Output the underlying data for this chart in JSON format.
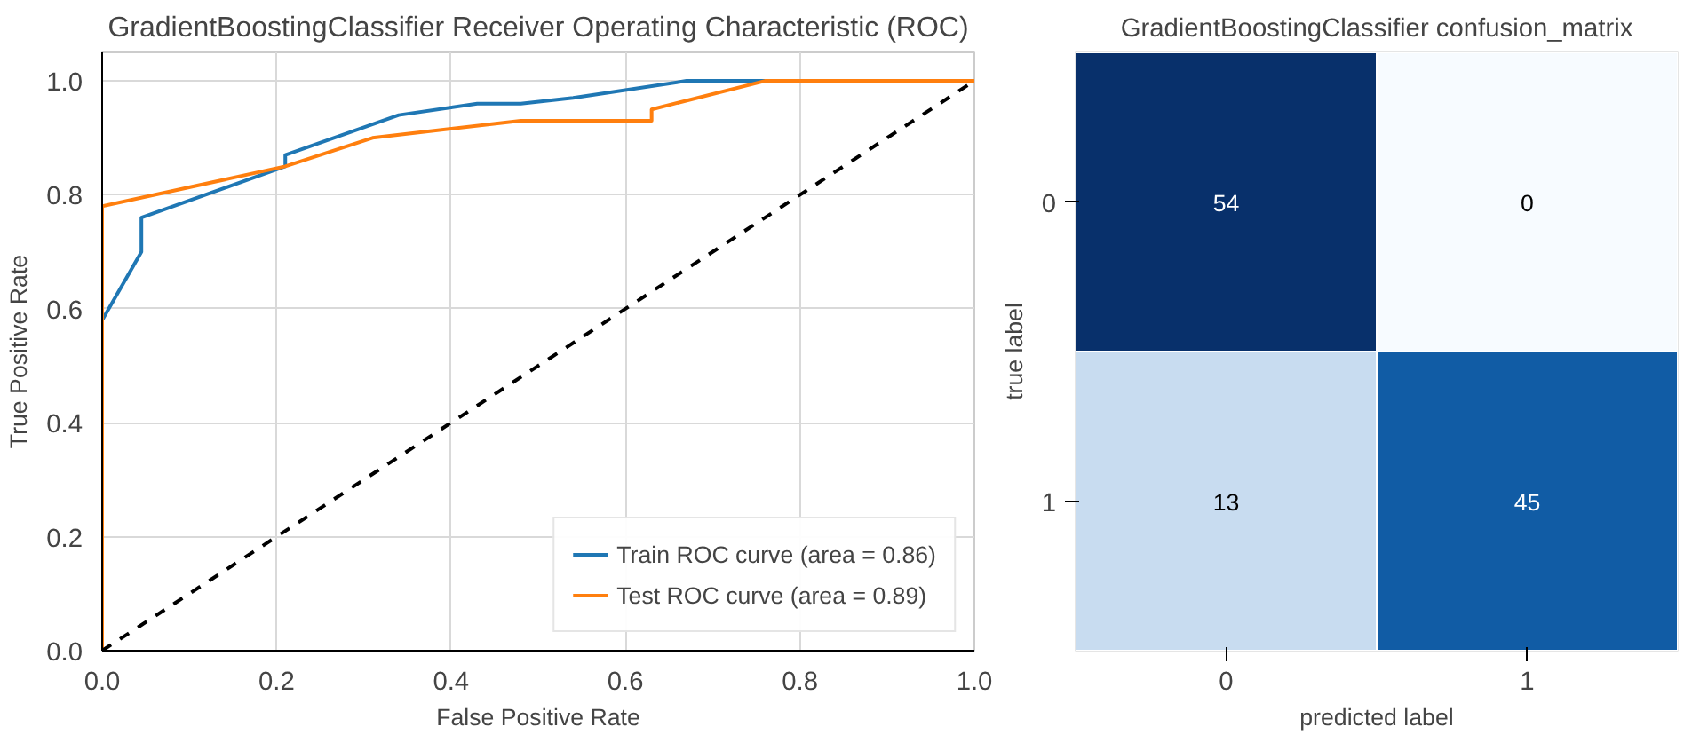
{
  "chart_data": [
    {
      "type": "line",
      "title": "GradientBoostingClassifier Receiver Operating Characteristic (ROC)",
      "xlabel": "False Positive Rate",
      "ylabel": "True Positive Rate",
      "series": [
        {
          "name": "Train ROC curve (area = 0.86)",
          "color": "#1f77b4",
          "x": [
            0,
            0,
            0.045,
            0.045,
            0.21,
            0.21,
            0.34,
            0.43,
            0.48,
            0.54,
            0.67,
            1
          ],
          "values": [
            0,
            0.58,
            0.7,
            0.76,
            0.85,
            0.87,
            0.94,
            0.96,
            0.96,
            0.97,
            1.0,
            1.0
          ]
        },
        {
          "name": "Test ROC curve (area = 0.89)",
          "color": "#ff7f0e",
          "x": [
            0,
            0,
            0.21,
            0.31,
            0.48,
            0.63,
            0.63,
            0.76,
            1
          ],
          "values": [
            0,
            0.78,
            0.85,
            0.9,
            0.93,
            0.93,
            0.95,
            1.0,
            1.0
          ]
        },
        {
          "color": "#000000",
          "line_style": "dashed",
          "x": [
            0,
            1
          ],
          "values": [
            0,
            1
          ]
        }
      ],
      "xlim": [
        0,
        1
      ],
      "ylim": [
        0,
        1.05
      ],
      "xticks": [
        {
          "value": 0,
          "label": "0.0"
        },
        0.2,
        0.4,
        0.6,
        0.8,
        {
          "value": 1,
          "label": "1.0"
        }
      ],
      "yticks": [
        {
          "value": 0,
          "label": "0.0"
        },
        0.2,
        0.4,
        0.6,
        0.8,
        {
          "value": 1,
          "label": "1.0"
        }
      ],
      "grid": true,
      "legend": "bottom right",
      "line_style": "solid"
    },
    {
      "type": "heatmap",
      "title": "GradientBoostingClassifier confusion_matrix",
      "xlabel": "predicted label",
      "ylabel": "true label",
      "categories": [
        "0",
        "1"
      ],
      "y_categories": [
        "0",
        "1"
      ],
      "cells": [
        [
          54,
          0
        ],
        [
          13,
          45
        ]
      ],
      "data_labels": true
    }
  ]
}
